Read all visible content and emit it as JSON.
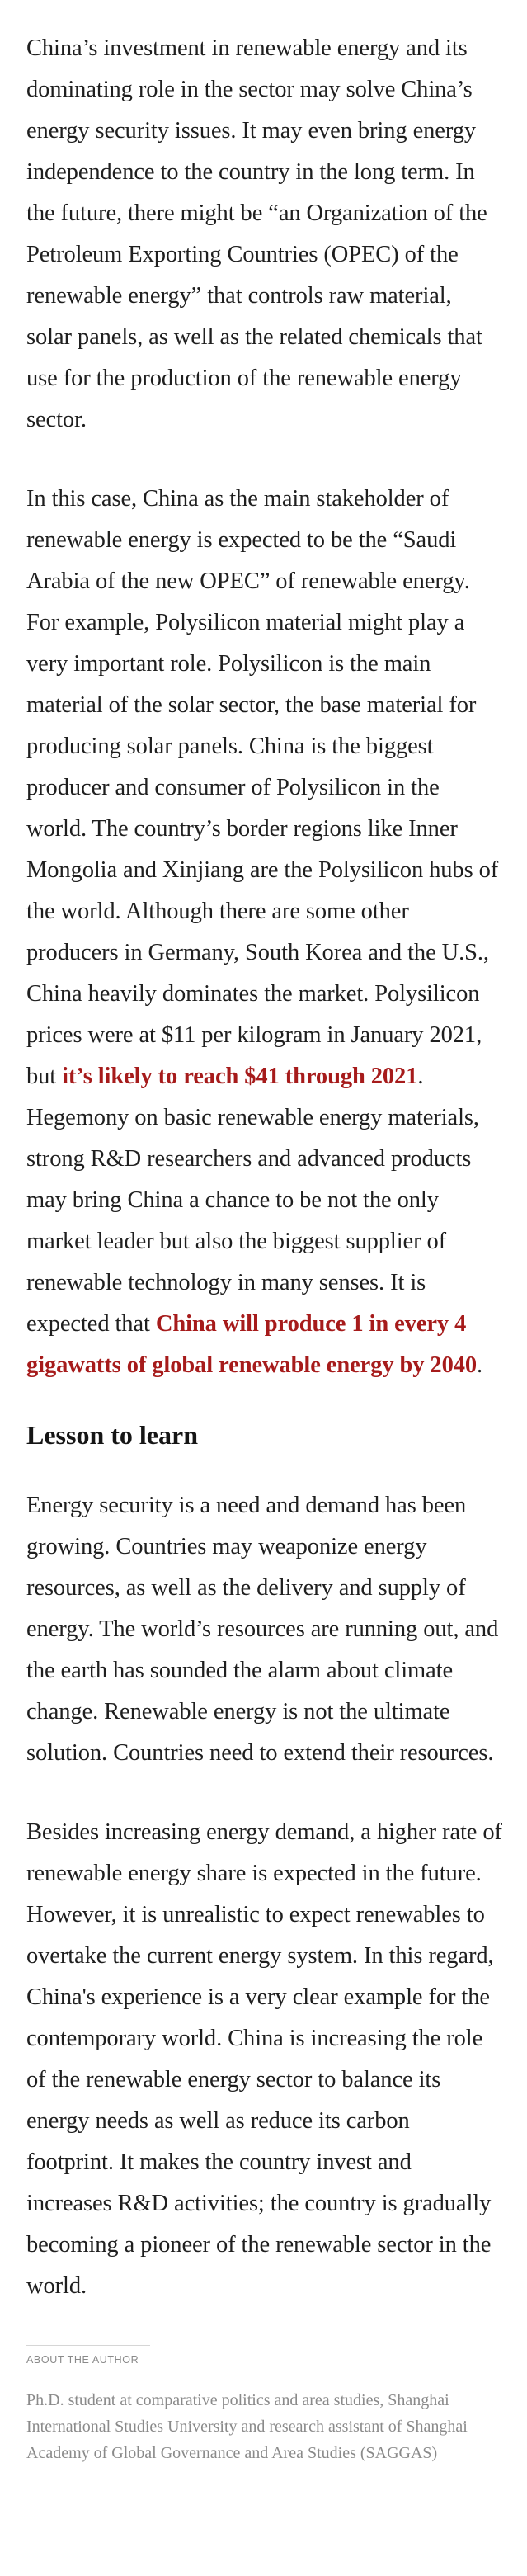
{
  "article": {
    "p1": "China’s investment in renewable energy and its dominating role in the sector may solve China’s energy security issues. It may even bring energy independence to the country in the long term. In the future, there might be “an Organization of the Petroleum Exporting Countries (OPEC) of the renewable energy” that controls raw material, solar panels, as well as the related chemicals that use for the production of the renewable energy sector.",
    "p2": {
      "part1": "In this case, China as the main stakeholder of renewable energy is expected to be the “Saudi Arabia of the new OPEC” of renewable energy. For example, Polysilicon material might play a very important role. Polysilicon is the main material of the solar sector, the base material for producing solar panels. China is the biggest producer and consumer of Polysilicon in the world. The country’s border regions like Inner Mongolia and Xinjiang are the Polysilicon hubs of the world. Although there are some other producers in Germany, South Korea and the U.S., China heavily dominates the market. Polysilicon prices were at $11 per kilogram in January 2021, but ",
      "link1": "it’s likely to reach $41 through 2021",
      "part2": ". Hegemony on basic renewable energy materials, strong R&D researchers and advanced products may bring China a chance to be not the only market leader but also the biggest supplier of renewable technology in many senses. It is expected that ",
      "link2": "China will produce 1 in every 4 gigawatts of global renewable energy by 2040",
      "part3": "."
    },
    "heading": "Lesson to learn",
    "p3": "Energy security is a need and demand has been growing. Countries may weaponize energy resources, as well as the delivery and supply of energy. The world’s resources are running out, and the earth has sounded the alarm about climate change. Renewable energy is not the ultimate solution. Countries need to extend their resources.",
    "p4": "Besides increasing energy demand, a higher rate of renewable energy share is expected in the future. However, it is unrealistic to expect renewables to overtake the current energy system. In this regard, China's experience is a very clear example for the contemporary world. China is increasing the role of the renewable energy sector to balance its energy needs as well as reduce its carbon footprint. It makes the country invest and increases R&D activities; the country is gradually becoming a pioneer of the renewable sector in the world."
  },
  "author": {
    "label": "ABOUT THE AUTHOR",
    "bio": "Ph.D. student at comparative politics and area studies, Shanghai International Studies University and research assistant of Shanghai Academy of Global Governance and Area Studies (SAGGAS)"
  },
  "colors": {
    "link": "#a61b1b",
    "body_text": "#1f1f1f",
    "muted": "#8a8a8a"
  }
}
